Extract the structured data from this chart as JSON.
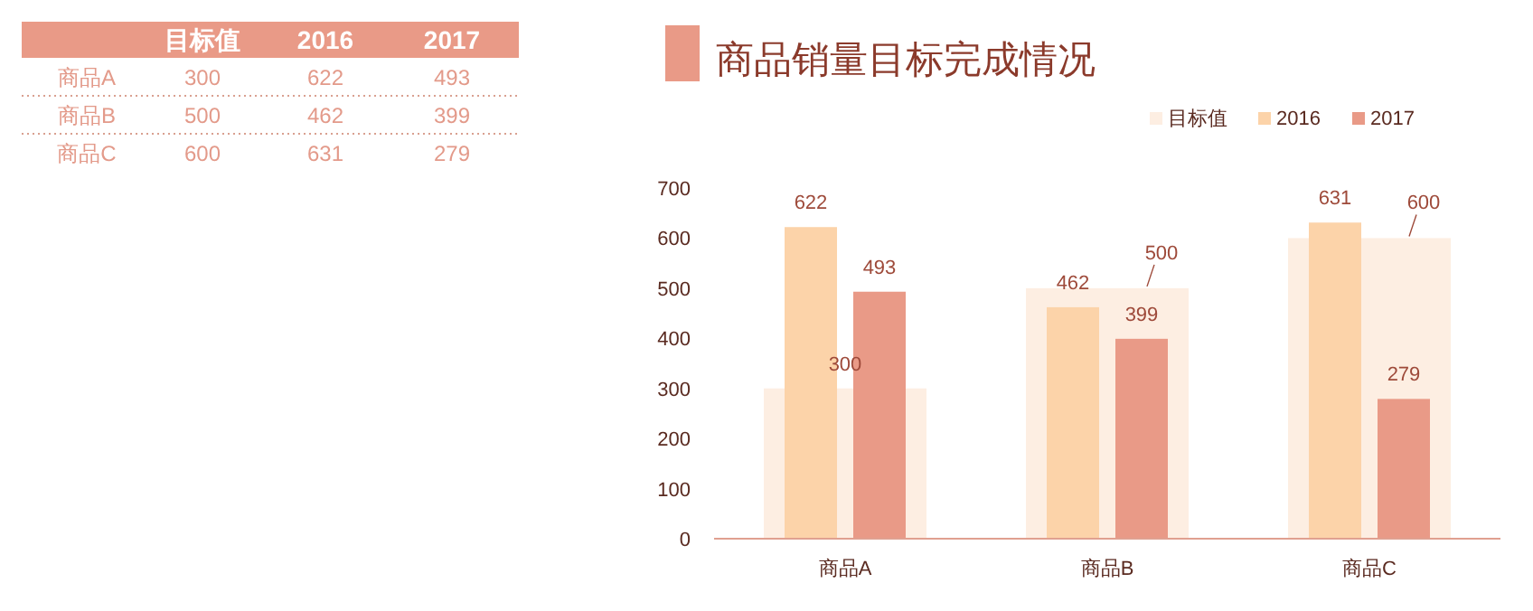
{
  "chart_data": [
    {
      "type": "heatmap",
      "categories": [
        "目标值",
        "2016",
        "2017"
      ],
      "y_categories": [
        "商品A",
        "商品B",
        "商品C"
      ],
      "cells": [
        [
          300,
          622,
          493
        ],
        [
          500,
          462,
          399
        ],
        [
          600,
          631,
          279
        ]
      ],
      "color": "#e99a87",
      "data_labels": true
    },
    {
      "type": "bar",
      "title": "商品销量目标完成情况",
      "categories": [
        "商品A",
        "商品B",
        "商品C"
      ],
      "series": [
        {
          "name": "目标值",
          "color": "#fdeee2",
          "values": [
            300,
            500,
            600
          ]
        },
        {
          "name": "2016",
          "color": "#fcd3a9",
          "values": [
            622,
            462,
            631
          ]
        },
        {
          "name": "2017",
          "color": "#e99a87",
          "values": [
            493,
            399,
            279
          ]
        }
      ],
      "ylim": [
        0,
        700
      ],
      "yticks": [
        0,
        100,
        200,
        300,
        400,
        500,
        600,
        700
      ],
      "grid": false,
      "legend": "top right",
      "data_labels": true
    }
  ]
}
